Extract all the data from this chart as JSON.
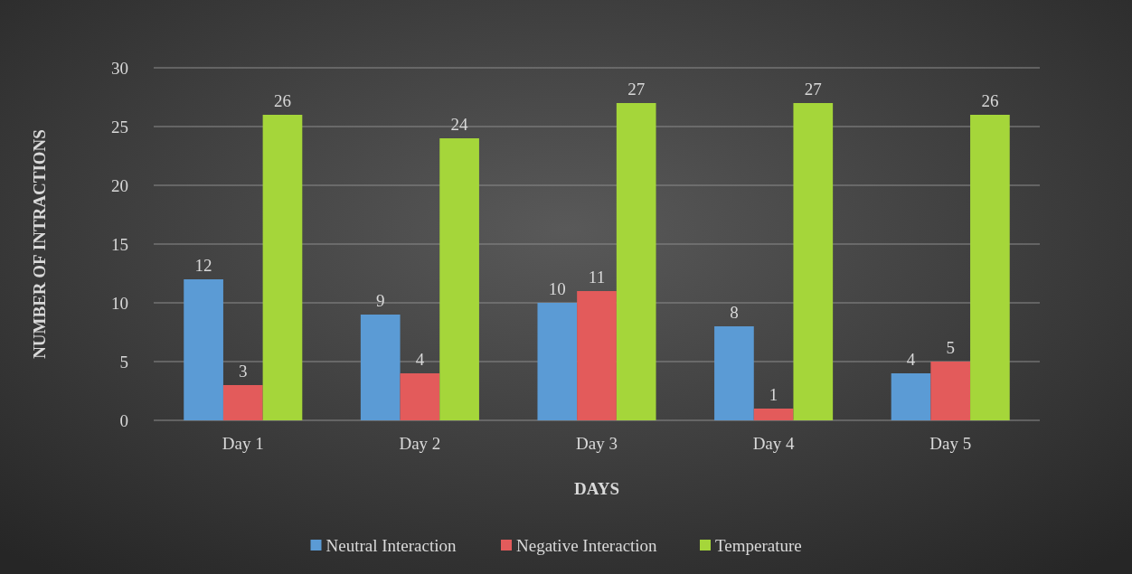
{
  "chart_data": {
    "type": "bar",
    "xlabel": "DAYS",
    "ylabel": "NUMBER OF INTRACTIONS",
    "categories": [
      "Day 1",
      "Day 2",
      "Day 3",
      "Day 4",
      "Day 5"
    ],
    "series": [
      {
        "name": "Neutral Interaction",
        "color": "#5b9bd5",
        "values": [
          12,
          9,
          10,
          8,
          4
        ]
      },
      {
        "name": "Negative Interaction",
        "color": "#e35b5b",
        "values": [
          3,
          4,
          11,
          1,
          5
        ]
      },
      {
        "name": "Temperature",
        "color": "#a5d63a",
        "values": [
          26,
          24,
          27,
          27,
          26
        ]
      }
    ],
    "ylim": [
      0,
      30
    ],
    "yticks": [
      0,
      5,
      10,
      15,
      20,
      25,
      30
    ],
    "grid": "y",
    "legend": "bottom",
    "data_labels": true
  }
}
